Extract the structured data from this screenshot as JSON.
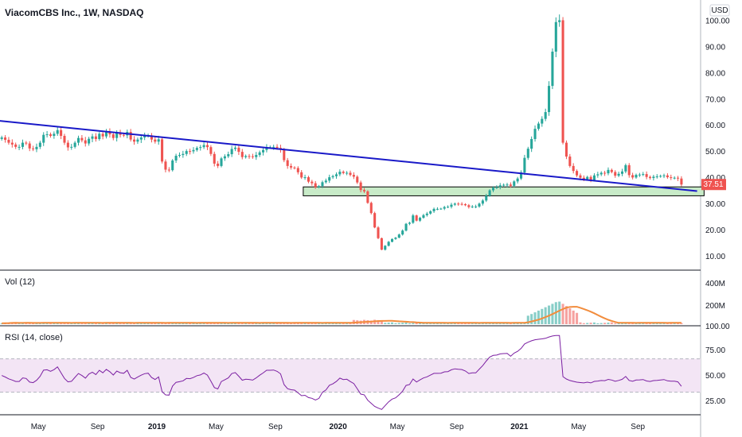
{
  "chart_data": {
    "title": "ViacomCBS Inc., 1W, NASDAQ",
    "currency": "USD",
    "type": "candlestick",
    "price_axis": {
      "ticks": [
        "100.00",
        "90.00",
        "80.00",
        "70.00",
        "60.00",
        "50.00",
        "40.00",
        "30.00",
        "20.00",
        "10.00"
      ],
      "range": [
        6,
        105
      ]
    },
    "last_price": "37.51",
    "last_price_color": "#ef5350",
    "up_color": "#26a69a",
    "down_color": "#ef5350",
    "x_axis": {
      "ticks": [
        {
          "label": "May",
          "bold": false,
          "t": 16
        },
        {
          "label": "Sep",
          "bold": false,
          "t": 33
        },
        {
          "label": "2019",
          "bold": true,
          "t": 50
        },
        {
          "label": "May",
          "bold": false,
          "t": 67
        },
        {
          "label": "Sep",
          "bold": false,
          "t": 84
        },
        {
          "label": "2020",
          "bold": true,
          "t": 102
        },
        {
          "label": "May",
          "bold": false,
          "t": 119
        },
        {
          "label": "Sep",
          "bold": false,
          "t": 136
        },
        {
          "label": "2021",
          "bold": true,
          "t": 154
        },
        {
          "label": "May",
          "bold": false,
          "t": 171
        },
        {
          "label": "Sep",
          "bold": false,
          "t": 188
        }
      ],
      "range": [
        5,
        206
      ]
    },
    "closes": [
      55.5,
      54.6,
      53.5,
      52.8,
      51.9,
      51.9,
      53.5,
      53.2,
      51.3,
      51.0,
      51.9,
      53.5,
      56.5,
      56.7,
      56.1,
      56.9,
      58.3,
      56.1,
      53.5,
      51.7,
      51.9,
      53.5,
      55.3,
      54.4,
      53.2,
      55.0,
      55.9,
      54.9,
      56.9,
      55.9,
      57.6,
      56.7,
      55.3,
      57.2,
      56.5,
      56.3,
      57.6,
      54.7,
      53.9,
      54.7,
      55.5,
      56.1,
      56.3,
      54.7,
      53.9,
      54.8,
      46.3,
      43.2,
      43.0,
      46.7,
      48.5,
      48.8,
      49.2,
      50.3,
      50.2,
      50.7,
      51.5,
      51.8,
      52.6,
      51.8,
      49.2,
      45.5,
      44.6,
      47.5,
      48.3,
      49.1,
      51.1,
      51.6,
      50.0,
      48.0,
      48.4,
      48.3,
      48.0,
      48.8,
      49.8,
      50.7,
      51.8,
      51.8,
      51.9,
      51.5,
      50.8,
      46.8,
      44.6,
      44.0,
      43.8,
      42.2,
      40.2,
      40.3,
      38.6,
      38.0,
      36.5,
      36.9,
      38.4,
      39.0,
      40.3,
      40.7,
      41.4,
      42.4,
      41.9,
      42.0,
      41.2,
      40.5,
      38.3,
      35.4,
      34.9,
      30.5,
      26.6,
      21.1,
      17.0,
      12.6,
      14.1,
      15.6,
      16.7,
      17.2,
      18.4,
      19.9,
      22.5,
      22.9,
      25.7,
      23.7,
      24.8,
      25.8,
      26.4,
      27.3,
      28.2,
      28.2,
      28.3,
      28.9,
      29.0,
      29.8,
      30.2,
      30.1,
      30.0,
      29.6,
      28.9,
      29.1,
      29.1,
      30.2,
      31.4,
      33.2,
      35.3,
      36.3,
      36.5,
      37.2,
      37.4,
      37.5,
      37.0,
      38.7,
      39.8,
      42.1,
      47.7,
      51.2,
      54.9,
      58.8,
      60.8,
      62.6,
      65.2,
      75.2,
      88.3,
      99.6,
      100.3,
      53.5,
      48.2,
      44.6,
      42.7,
      41.0,
      40.1,
      39.5,
      40.4,
      39.2,
      41.0,
      41.4,
      42.0,
      41.8,
      43.1,
      42.3,
      40.9,
      41.6,
      42.5,
      44.9,
      41.1,
      40.2,
      41.2,
      41.3,
      41.5,
      40.4,
      40.0,
      40.5,
      40.6,
      40.8,
      41.0,
      40.3,
      40.1,
      40.1,
      39.8,
      37.5
    ],
    "trendline": {
      "from": {
        "t": 0,
        "price": 62.5
      },
      "to": {
        "t": 205,
        "price": 35.0
      },
      "color": "#1919c8"
    },
    "support_zone": {
      "t_from": 92,
      "t_to": 207,
      "price_low": 33.2,
      "price_high": 36.6,
      "fill": "#c8ebc8",
      "stroke": "#000000"
    },
    "volume_panel": {
      "label": "Vol (12)",
      "axis_ticks": [
        "400M",
        "200M",
        "100.00"
      ],
      "ma_color": "#f28c3c"
    },
    "rsi_panel": {
      "label": "RSI (14, close)",
      "axis_ticks": [
        "75.00",
        "50.00",
        "25.00"
      ],
      "line_color": "#7b1fa2",
      "band_fill": "#f3e5f5",
      "upper": 70,
      "lower": 30
    }
  }
}
